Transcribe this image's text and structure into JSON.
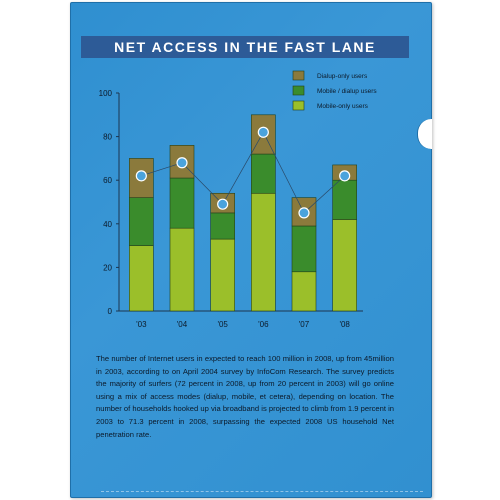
{
  "title": "NET ACCESS IN THE FAST LANE",
  "caption": "The number of Internet users in expected to reach 100 million in 2008, up from 45million in 2003, according to on April 2004 survey by InfoCom Research. The survey predicts the majority of surfers (72 percent in 2008, up from 20 percent in 2003) will go online using a mix of access modes (dialup, mobile, et cetera), depending on location. The number of households hooked up via broadband is projected to climb from 1.9 percent in 2003 to 71.3 percent in 2008, surpassing the expected 2008 US household Net penetration rate.",
  "colors": {
    "folder": "#3190d0",
    "banner": "#2d5b97",
    "dialup": "#8b7a3c",
    "mobile_dialup": "#3a8c2c",
    "mobile": "#9bbf2a",
    "marker": "#4aa3dc"
  },
  "chart_data": {
    "type": "bar",
    "stacked": true,
    "categories": [
      "'03",
      "'04",
      "'05",
      "'06",
      "'07",
      "'08"
    ],
    "yticks": [
      0,
      20,
      40,
      60,
      80,
      100
    ],
    "ylim": [
      0,
      100
    ],
    "series": [
      {
        "name": "Mobile-only users",
        "values": [
          30,
          38,
          33,
          54,
          18,
          42
        ]
      },
      {
        "name": "Mobile / dialup users",
        "values": [
          22,
          23,
          12,
          18,
          21,
          18
        ]
      },
      {
        "name": "Dialup-only users",
        "values": [
          18,
          15,
          9,
          18,
          13,
          7
        ]
      }
    ],
    "legend_position": "top-right",
    "line_markers": [
      62,
      68,
      49,
      82,
      45,
      62
    ]
  }
}
